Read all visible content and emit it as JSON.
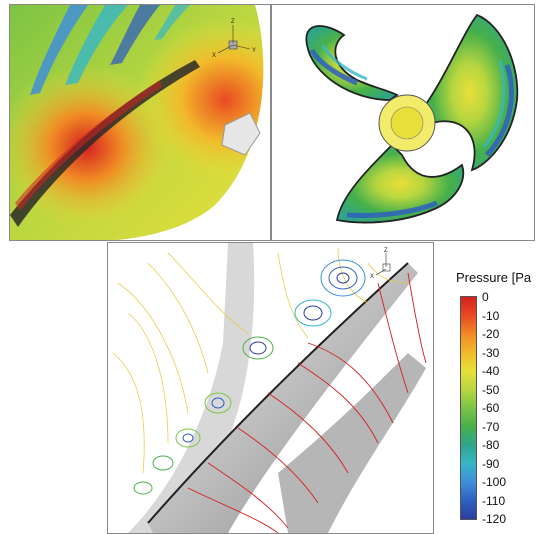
{
  "panels": {
    "top_left": {
      "axis": {
        "z": "Z",
        "x": "X",
        "y": "Y"
      }
    },
    "top_right": {},
    "bottom": {
      "axis": {
        "z": "Z",
        "x": "X"
      }
    }
  },
  "legend": {
    "title": "Pressure [Pa",
    "colors": [
      "#d42020",
      "#e84a22",
      "#f08a24",
      "#f2b92a",
      "#e8df3a",
      "#b8d640",
      "#7cc444",
      "#47b04a",
      "#2fa58a",
      "#36b6c8",
      "#3f8fd8",
      "#2f5fc0",
      "#2a3f9e"
    ],
    "labels": [
      "0",
      "-10",
      "-20",
      "-30",
      "-40",
      "-50",
      "-60",
      "-70",
      "-80",
      "-90",
      "-100",
      "-110",
      "-120"
    ]
  }
}
